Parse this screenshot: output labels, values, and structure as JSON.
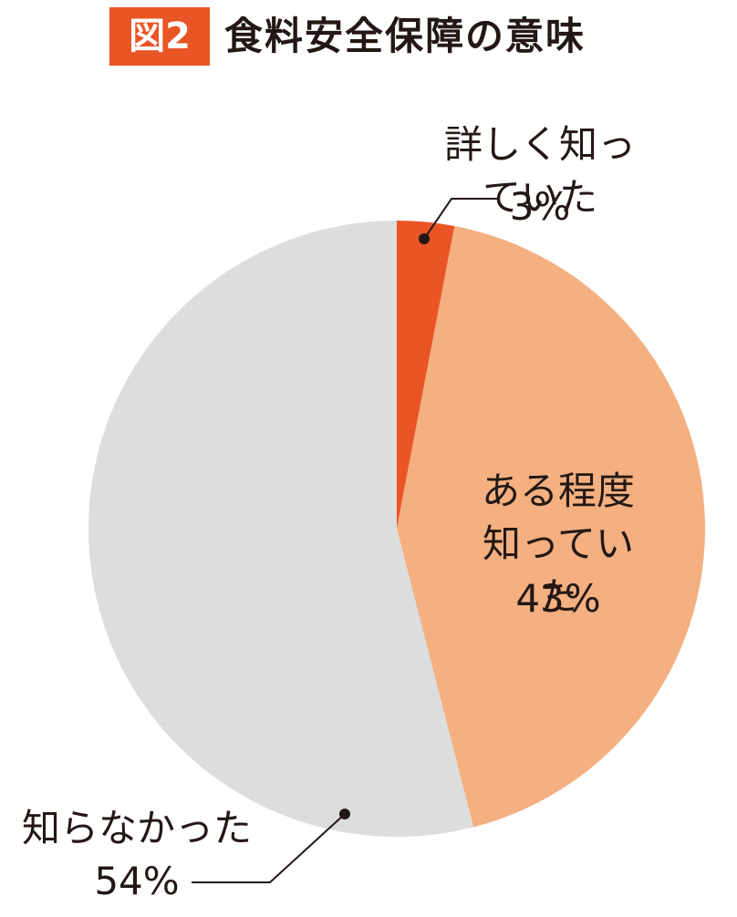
{
  "chart_data": {
    "type": "pie",
    "figure_label": "図2",
    "title": "食料安全保障の意味",
    "categories": [
      "詳しく知っていた",
      "ある程度\n知っていた",
      "知らなかった"
    ],
    "values": [
      3,
      43,
      54
    ],
    "value_labels": [
      "3%",
      "43%",
      "54%"
    ],
    "colors": [
      "#e95525",
      "#f4b081",
      "#dcdddd"
    ]
  }
}
